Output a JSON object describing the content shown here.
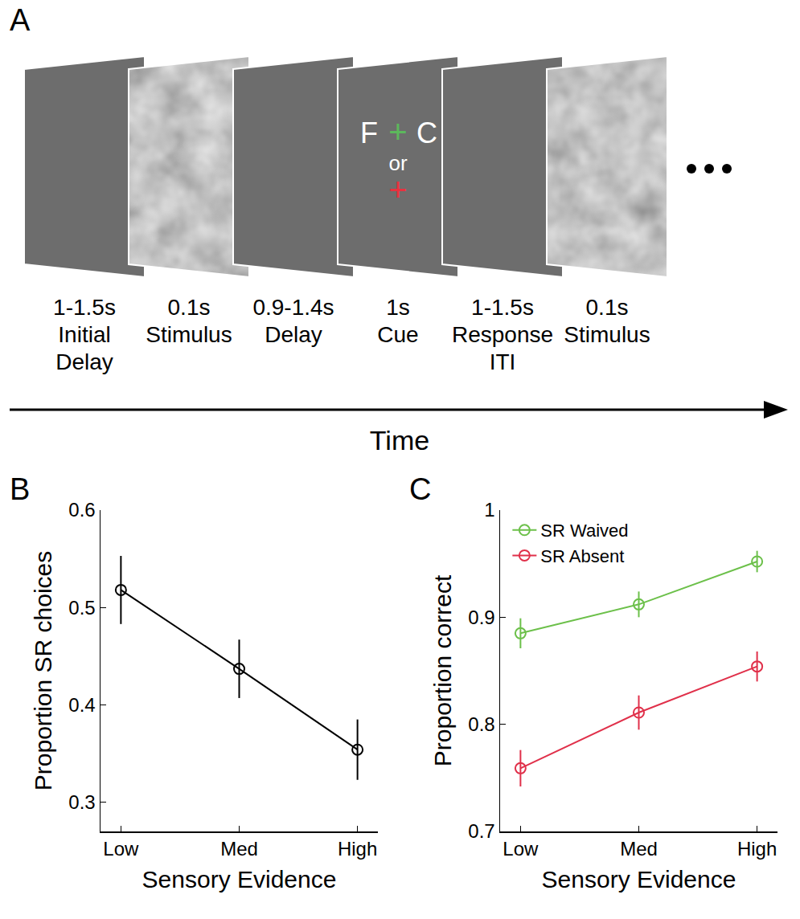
{
  "panel_a": {
    "panel": "A",
    "screens": [
      {
        "kind": "blank",
        "label": [
          "1-1.5s",
          "Initial",
          "Delay"
        ]
      },
      {
        "kind": "stimulus",
        "label": [
          "0.1s",
          "Stimulus"
        ]
      },
      {
        "kind": "blank",
        "label": [
          "0.9-1.4s",
          "Delay"
        ]
      },
      {
        "kind": "cue",
        "label": [
          "1s",
          "Cue"
        ],
        "cue": {
          "left": "F",
          "right": "C",
          "go": "+",
          "or": "or",
          "nogo": "+",
          "go_color": "#5cb85c",
          "nogo_color": "#e8313f"
        }
      },
      {
        "kind": "blank",
        "label": [
          "1-1.5s",
          "Response",
          "ITI"
        ]
      },
      {
        "kind": "stimulus",
        "label": [
          "0.1s",
          "Stimulus"
        ]
      }
    ],
    "axis_label": "Time"
  },
  "chart_data": [
    {
      "panel": "B",
      "type": "line",
      "categories": [
        "Low",
        "Med",
        "High"
      ],
      "xlabel": "Sensory Evidence",
      "ylabel": "Proportion SR choices",
      "series": [
        {
          "values": [
            0.518,
            0.437,
            0.354
          ],
          "errors": [
            0.035,
            0.03,
            0.031
          ],
          "color": "#000000",
          "marker": "circle-open"
        }
      ],
      "ylim": [
        0.27,
        0.6
      ],
      "yticks": [
        0.3,
        0.4,
        0.5,
        0.6
      ],
      "grid": false
    },
    {
      "panel": "C",
      "type": "line",
      "categories": [
        "Low",
        "Med",
        "High"
      ],
      "xlabel": "Sensory Evidence",
      "ylabel": "Proportion correct",
      "series": [
        {
          "name": "SR Waived",
          "values": [
            0.885,
            0.912,
            0.952
          ],
          "errors": [
            0.014,
            0.012,
            0.01
          ],
          "color": "#6cc04a",
          "marker": "circle-open"
        },
        {
          "name": "SR Absent",
          "values": [
            0.759,
            0.811,
            0.854
          ],
          "errors": [
            0.017,
            0.016,
            0.014
          ],
          "color": "#e0304a",
          "marker": "circle-open"
        }
      ],
      "ylim": [
        0.7,
        1
      ],
      "yticks": [
        0.7,
        0.8,
        0.9,
        1
      ],
      "grid": false,
      "legend": "top left"
    }
  ]
}
